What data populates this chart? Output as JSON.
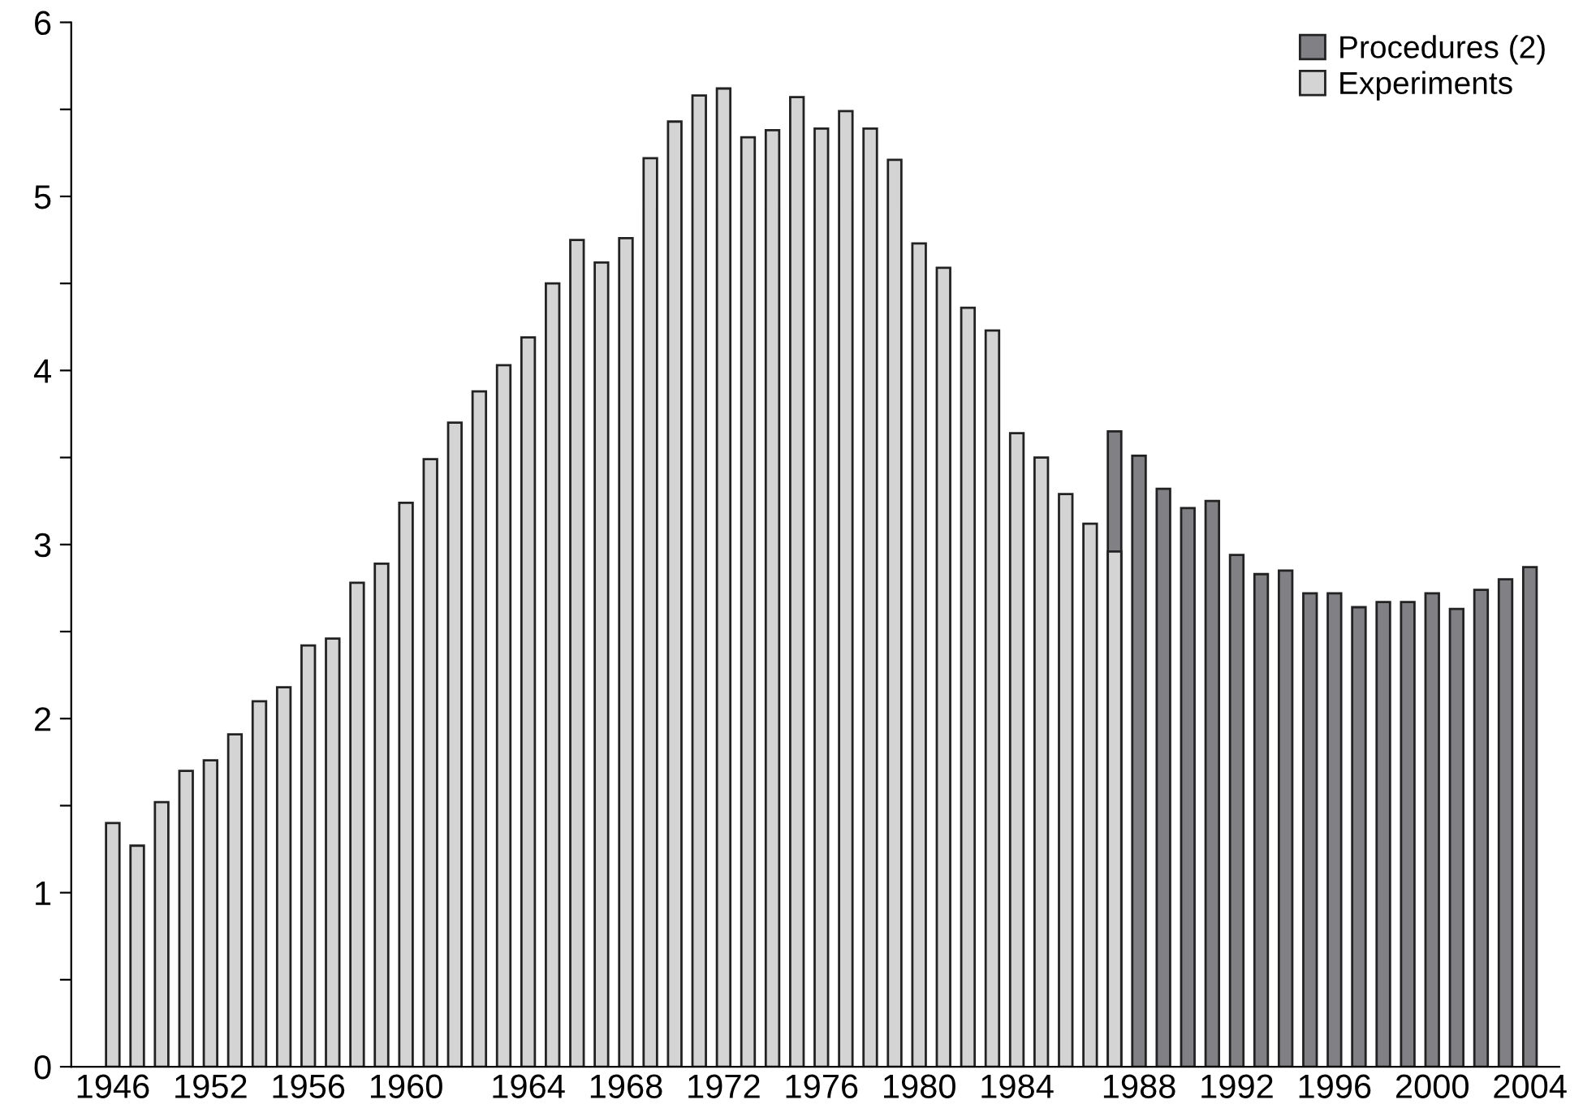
{
  "chart_data": {
    "type": "bar",
    "categories": [
      "1946",
      null,
      null,
      null,
      "1952",
      null,
      null,
      null,
      "1956",
      null,
      null,
      null,
      "1960",
      null,
      null,
      null,
      null,
      "1964",
      null,
      null,
      null,
      "1968",
      null,
      null,
      null,
      "1972",
      null,
      null,
      null,
      "1976",
      null,
      null,
      null,
      "1980",
      null,
      null,
      null,
      "1984",
      null,
      null,
      null,
      null,
      "1988",
      null,
      null,
      null,
      "1992",
      null,
      null,
      null,
      "1996",
      null,
      null,
      null,
      "2000",
      null,
      null,
      null,
      "2004"
    ],
    "series": [
      {
        "name": "Procedures (2)",
        "color": "#808085",
        "values": [
          null,
          null,
          null,
          null,
          null,
          null,
          null,
          null,
          null,
          null,
          null,
          null,
          null,
          null,
          null,
          null,
          null,
          null,
          null,
          null,
          null,
          null,
          null,
          null,
          null,
          null,
          null,
          null,
          null,
          null,
          null,
          null,
          null,
          null,
          null,
          null,
          null,
          null,
          null,
          null,
          null,
          3.65,
          3.51,
          3.32,
          3.21,
          3.25,
          2.94,
          2.83,
          2.85,
          2.72,
          2.72,
          2.64,
          2.67,
          2.67,
          2.72,
          2.63,
          2.74,
          2.8,
          2.87
        ]
      },
      {
        "name": "Experiments",
        "color": "#d4d4d4",
        "values": [
          1.4,
          1.27,
          1.52,
          1.7,
          1.76,
          1.91,
          2.1,
          2.18,
          2.42,
          2.46,
          2.78,
          2.89,
          3.24,
          3.49,
          3.7,
          3.88,
          4.03,
          4.19,
          4.5,
          4.75,
          4.62,
          4.76,
          5.22,
          5.43,
          5.58,
          5.62,
          5.34,
          5.38,
          5.57,
          5.39,
          5.49,
          5.39,
          5.21,
          4.73,
          4.59,
          4.36,
          4.23,
          3.64,
          3.5,
          3.29,
          3.12,
          2.96,
          null,
          null,
          null,
          null,
          null,
          null,
          null,
          null,
          null,
          null,
          null,
          null,
          null,
          null,
          null,
          null,
          null
        ]
      }
    ],
    "ylim": [
      0,
      6
    ],
    "yticks": [
      0,
      {
        "value": 0.5,
        "label": null
      },
      1,
      {
        "value": 1.5,
        "label": null
      },
      2,
      {
        "value": 2.5,
        "label": null
      },
      3,
      {
        "value": 3.5,
        "label": null
      },
      4,
      {
        "value": 4.5,
        "label": null
      },
      5,
      {
        "value": 5.5,
        "label": null
      },
      6
    ],
    "legend": "top right",
    "grid": false
  }
}
